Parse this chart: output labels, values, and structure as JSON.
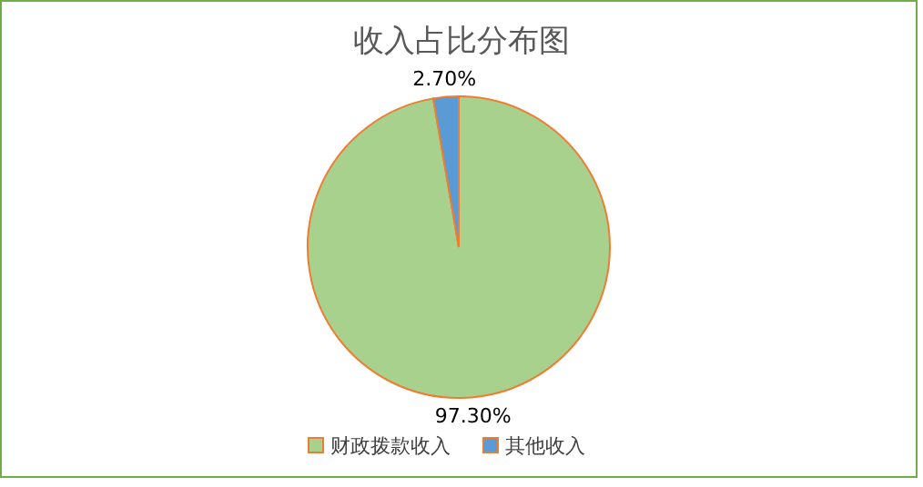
{
  "chart_data": {
    "type": "pie",
    "title": "收入占比分布图",
    "categories": [
      "财政拨款收入",
      "其他收入"
    ],
    "values": [
      97.3,
      2.7
    ],
    "colors": [
      "#a9d18e",
      "#5b9bd5"
    ],
    "value_labels": [
      "97.30%",
      "2.70%"
    ],
    "legend": "bottom"
  }
}
